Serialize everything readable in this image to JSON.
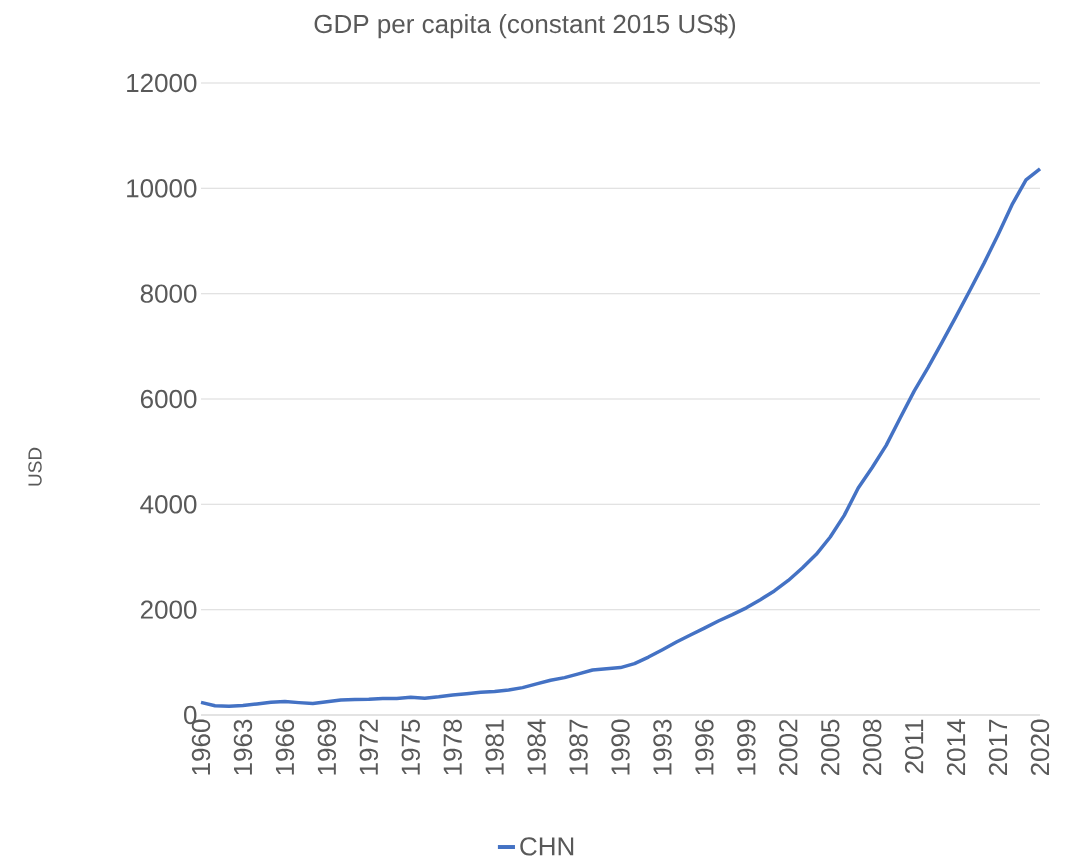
{
  "chart_data": {
    "type": "line",
    "title": "GDP per capita (constant 2015 US$)",
    "ylabel": "USD",
    "categories": [
      "1960",
      null,
      null,
      "1963",
      null,
      null,
      "1966",
      null,
      null,
      "1969",
      null,
      null,
      "1972",
      null,
      null,
      "1975",
      null,
      null,
      "1978",
      null,
      null,
      "1981",
      null,
      null,
      "1984",
      null,
      null,
      "1987",
      null,
      null,
      "1990",
      null,
      null,
      "1993",
      null,
      null,
      "1996",
      null,
      null,
      "1999",
      null,
      null,
      "2002",
      null,
      null,
      "2005",
      null,
      null,
      "2008",
      null,
      null,
      "2011",
      null,
      null,
      "2014",
      null,
      null,
      "2017",
      null,
      null,
      "2020"
    ],
    "series": [
      {
        "name": "CHN",
        "color": "#4472c4",
        "values": [
          240,
          175,
          165,
          180,
          210,
          240,
          255,
          235,
          220,
          250,
          285,
          295,
          300,
          315,
          315,
          335,
          320,
          345,
          380,
          405,
          430,
          445,
          475,
          520,
          590,
          660,
          710,
          780,
          855,
          880,
          900,
          975,
          1100,
          1240,
          1385,
          1520,
          1650,
          1785,
          1905,
          2035,
          2190,
          2355,
          2555,
          2790,
          3050,
          3380,
          3790,
          4310,
          4700,
          5120,
          5640,
          6150,
          6600,
          7080,
          7570,
          8070,
          8580,
          9120,
          9690,
          10160,
          10370
        ]
      }
    ],
    "ylim": [
      0,
      12000
    ],
    "yticks": [
      0,
      2000,
      4000,
      6000,
      8000,
      10000,
      12000
    ],
    "grid": "y",
    "legend": "bottom",
    "marker": "none",
    "line_style": "solid"
  }
}
